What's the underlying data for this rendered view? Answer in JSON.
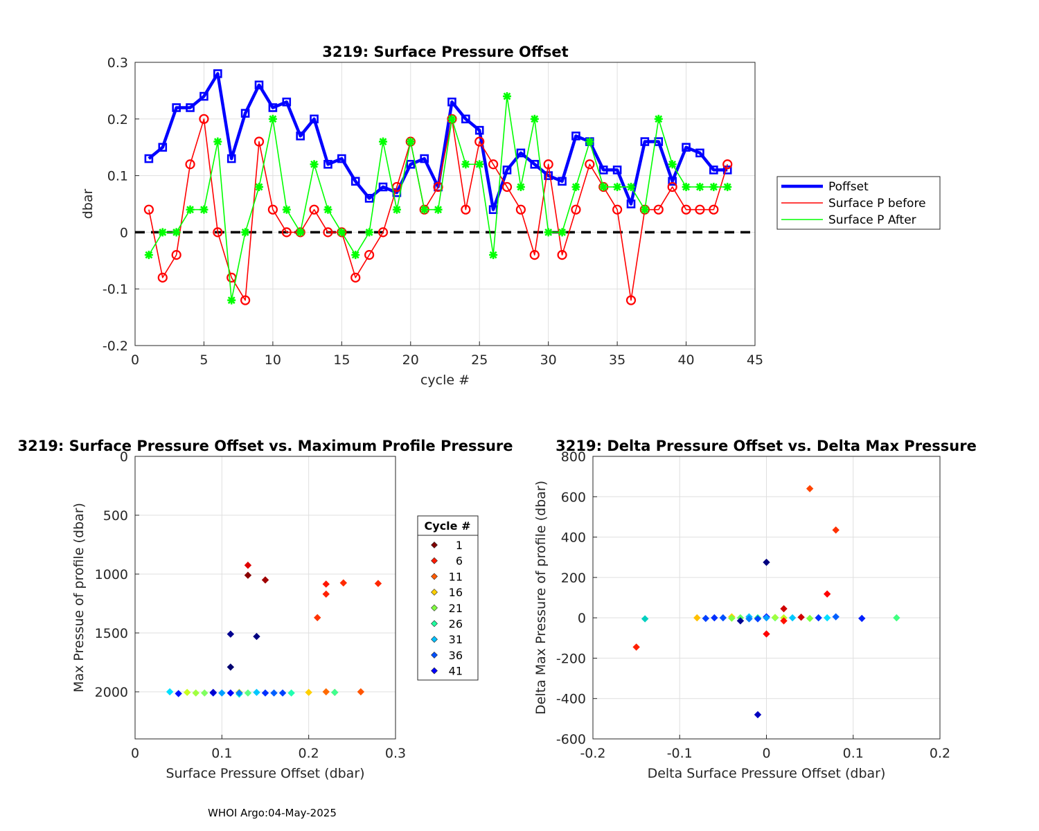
{
  "chart_data": [
    {
      "type": "line",
      "title": "3219: Surface Pressure Offset",
      "xlabel": "cycle #",
      "ylabel": "dbar",
      "xlim": [
        0,
        45
      ],
      "ylim": [
        -0.2,
        0.3
      ],
      "xticks": [
        "0",
        "5",
        "10",
        "15",
        "20",
        "25",
        "30",
        "35",
        "40",
        "45"
      ],
      "yticks": [
        "-0.2",
        "-0.1",
        "0",
        "0.1",
        "0.2",
        "0.3"
      ],
      "grid": true,
      "legend_position": "right",
      "reference_line": {
        "y": 0,
        "style": "dashed",
        "color": "#000000"
      },
      "x": [
        1,
        2,
        3,
        4,
        5,
        6,
        7,
        8,
        9,
        10,
        11,
        12,
        13,
        14,
        15,
        16,
        17,
        18,
        19,
        20,
        21,
        22,
        23,
        24,
        25,
        26,
        27,
        28,
        29,
        30,
        31,
        32,
        33,
        34,
        35,
        36,
        37,
        38,
        39,
        40,
        41,
        42,
        43
      ],
      "series": [
        {
          "name": "Poffset",
          "color": "#0000ff",
          "marker": "square",
          "values": [
            0.13,
            0.15,
            0.22,
            0.22,
            0.24,
            0.28,
            0.13,
            0.21,
            0.26,
            0.22,
            0.23,
            0.17,
            0.2,
            0.12,
            0.13,
            0.09,
            0.06,
            0.08,
            0.07,
            0.12,
            0.13,
            0.08,
            0.23,
            0.2,
            0.18,
            0.04,
            0.11,
            0.14,
            0.12,
            0.1,
            0.09,
            0.17,
            0.16,
            0.11,
            0.11,
            0.05,
            0.16,
            0.16,
            0.09,
            0.15,
            0.14,
            0.11,
            0.11
          ]
        },
        {
          "name": "Surface P before",
          "color": "#ff0000",
          "marker": "circle",
          "values": [
            0.04,
            -0.08,
            -0.04,
            0.12,
            0.2,
            0,
            -0.08,
            -0.12,
            0.16,
            0.04,
            0,
            0,
            0.04,
            0,
            0,
            -0.08,
            -0.04,
            0,
            0.08,
            0.16,
            0.04,
            0.08,
            0.2,
            0.04,
            0.16,
            0.12,
            0.08,
            0.04,
            -0.04,
            0.12,
            -0.04,
            0.04,
            0.12,
            0.08,
            0.04,
            -0.12,
            0.04,
            0.04,
            0.08,
            0.04,
            0.04,
            0.04,
            0.12
          ]
        },
        {
          "name": "Surface P After",
          "color": "#00ff00",
          "marker": "star",
          "values": [
            -0.04,
            0,
            0,
            0.04,
            0.04,
            0.16,
            -0.12,
            0,
            0.08,
            0.2,
            0.04,
            0,
            0.12,
            0.04,
            0,
            -0.04,
            0,
            0.16,
            0.04,
            0.16,
            0.04,
            0.04,
            0.2,
            0.12,
            0.12,
            -0.04,
            0.24,
            0.08,
            0.2,
            0,
            0,
            0.08,
            0.16,
            0.08,
            0.08,
            0.08,
            0.04,
            0.2,
            0.12,
            0.08,
            0.08,
            0.08,
            0.08
          ]
        }
      ]
    },
    {
      "type": "scatter",
      "title": "3219: Surface Pressure Offset vs. Maximum Profile Pressure",
      "xlabel": "Surface Pressure Offset (dbar)",
      "ylabel": "Max Pressue of profile (dbar)",
      "xlim": [
        0,
        0.3
      ],
      "ylim": [
        0,
        2400
      ],
      "y_reversed": true,
      "xticks": [
        "0",
        "0.1",
        "0.2",
        "0.3"
      ],
      "yticks": [
        "0",
        "500",
        "1000",
        "1500",
        "2000"
      ],
      "grid": true,
      "colorscale": "jet",
      "legend_title": "Cycle #",
      "legend_entries": [
        "1",
        "6",
        "11",
        "16",
        "21",
        "26",
        "31",
        "36",
        "41"
      ],
      "legend_colors": [
        "#800000",
        "#ff1a00",
        "#ff5a00",
        "#ffd000",
        "#80ff40",
        "#20ffa0",
        "#00c0ff",
        "#0050ff",
        "#0000ff"
      ],
      "points": [
        {
          "x": 0.13,
          "y": 1010,
          "color": "#8a0000"
        },
        {
          "x": 0.15,
          "y": 1050,
          "color": "#a00000"
        },
        {
          "x": 0.13,
          "y": 925,
          "color": "#e00000"
        },
        {
          "x": 0.22,
          "y": 1085,
          "color": "#ff1500"
        },
        {
          "x": 0.22,
          "y": 1170,
          "color": "#ff2000"
        },
        {
          "x": 0.24,
          "y": 1075,
          "color": "#ff2a00"
        },
        {
          "x": 0.28,
          "y": 1080,
          "color": "#ff2800"
        },
        {
          "x": 0.21,
          "y": 1370,
          "color": "#ff3300"
        },
        {
          "x": 0.26,
          "y": 2000,
          "color": "#ff5500"
        },
        {
          "x": 0.22,
          "y": 2000,
          "color": "#ff6a00"
        },
        {
          "x": 0.23,
          "y": 2005,
          "color": "#ff8800"
        },
        {
          "x": 0.2,
          "y": 2005,
          "color": "#ffd000"
        },
        {
          "x": 0.12,
          "y": 2005,
          "color": "#ffe000"
        },
        {
          "x": 0.06,
          "y": 2005,
          "color": "#c8ff20"
        },
        {
          "x": 0.07,
          "y": 2010,
          "color": "#a0ff40"
        },
        {
          "x": 0.08,
          "y": 2010,
          "color": "#80ff60"
        },
        {
          "x": 0.13,
          "y": 2010,
          "color": "#60ff80"
        },
        {
          "x": 0.23,
          "y": 2005,
          "color": "#40ff90"
        },
        {
          "x": 0.18,
          "y": 2010,
          "color": "#20ffb0"
        },
        {
          "x": 0.12,
          "y": 2020,
          "color": "#10f0d0"
        },
        {
          "x": 0.04,
          "y": 2000,
          "color": "#00e0ff"
        },
        {
          "x": 0.14,
          "y": 2005,
          "color": "#00c8ff"
        },
        {
          "x": 0.1,
          "y": 2010,
          "color": "#00a0ff"
        },
        {
          "x": 0.12,
          "y": 2010,
          "color": "#0080ff"
        },
        {
          "x": 0.16,
          "y": 2010,
          "color": "#0060ff"
        },
        {
          "x": 0.17,
          "y": 2010,
          "color": "#0040ff"
        },
        {
          "x": 0.15,
          "y": 2010,
          "color": "#0030ff"
        },
        {
          "x": 0.09,
          "y": 2010,
          "color": "#0020ff"
        },
        {
          "x": 0.05,
          "y": 2015,
          "color": "#0010ff"
        },
        {
          "x": 0.11,
          "y": 2010,
          "color": "#0000ff"
        },
        {
          "x": 0.09,
          "y": 2005,
          "color": "#0000d0"
        },
        {
          "x": 0.11,
          "y": 1510,
          "color": "#000090"
        },
        {
          "x": 0.14,
          "y": 1530,
          "color": "#000080"
        },
        {
          "x": 0.11,
          "y": 1790,
          "color": "#000070"
        }
      ]
    },
    {
      "type": "scatter",
      "title": "3219: Delta Pressure Offset vs. Delta Max Pressure",
      "xlabel": "Delta Surface Pressure Offset (dbar)",
      "ylabel": "Delta Max Pressure of profile (dbar)",
      "xlim": [
        -0.2,
        0.2
      ],
      "ylim": [
        -600,
        800
      ],
      "xticks": [
        "-0.2",
        "-0.1",
        "0",
        "0.1",
        "0.2"
      ],
      "yticks": [
        "-600",
        "-400",
        "-200",
        "0",
        "200",
        "400",
        "600",
        "800"
      ],
      "grid": true,
      "colorscale": "jet",
      "points": [
        {
          "x": 0.05,
          "y": 640,
          "color": "#ff4500"
        },
        {
          "x": 0.08,
          "y": 435,
          "color": "#ff3000"
        },
        {
          "x": 0,
          "y": 275,
          "color": "#000080"
        },
        {
          "x": 0.07,
          "y": 118,
          "color": "#ff0000"
        },
        {
          "x": 0.02,
          "y": 45,
          "color": "#d00000"
        },
        {
          "x": -0.15,
          "y": -145,
          "color": "#ff2000"
        },
        {
          "x": -0.14,
          "y": -5,
          "color": "#00d0c0"
        },
        {
          "x": 0,
          "y": -80,
          "color": "#ff0000"
        },
        {
          "x": -0.01,
          "y": -480,
          "color": "#0000c0"
        },
        {
          "x": -0.08,
          "y": 0,
          "color": "#ffc000"
        },
        {
          "x": -0.07,
          "y": -3,
          "color": "#0040ff"
        },
        {
          "x": -0.06,
          "y": 0,
          "color": "#0030ff"
        },
        {
          "x": -0.05,
          "y": 0,
          "color": "#0050ff"
        },
        {
          "x": -0.04,
          "y": 5,
          "color": "#ffd000"
        },
        {
          "x": -0.04,
          "y": -2,
          "color": "#80ff40"
        },
        {
          "x": -0.03,
          "y": 0,
          "color": "#60ff60"
        },
        {
          "x": -0.03,
          "y": -15,
          "color": "#000090"
        },
        {
          "x": -0.02,
          "y": 5,
          "color": "#00c0ff"
        },
        {
          "x": -0.02,
          "y": -5,
          "color": "#0080ff"
        },
        {
          "x": -0.01,
          "y": 0,
          "color": "#20ff80"
        },
        {
          "x": -0.01,
          "y": -5,
          "color": "#0040ff"
        },
        {
          "x": 0,
          "y": 5,
          "color": "#0000ff"
        },
        {
          "x": 0,
          "y": 0,
          "color": "#00a0ff"
        },
        {
          "x": 0.01,
          "y": 0,
          "color": "#40ff80"
        },
        {
          "x": 0.01,
          "y": 2,
          "color": "#a0ff40"
        },
        {
          "x": 0.02,
          "y": 0,
          "color": "#c0ff20"
        },
        {
          "x": 0.02,
          "y": -15,
          "color": "#ff1000"
        },
        {
          "x": 0.03,
          "y": 0,
          "color": "#00c8ff"
        },
        {
          "x": 0.04,
          "y": 3,
          "color": "#d00000"
        },
        {
          "x": 0.05,
          "y": -3,
          "color": "#80ff40"
        },
        {
          "x": 0.06,
          "y": 0,
          "color": "#0030ff"
        },
        {
          "x": 0.07,
          "y": 0,
          "color": "#00e0ff"
        },
        {
          "x": 0.08,
          "y": 5,
          "color": "#0060ff"
        },
        {
          "x": 0.11,
          "y": -3,
          "color": "#0020ff"
        },
        {
          "x": 0.15,
          "y": 0,
          "color": "#40ff80"
        }
      ]
    }
  ],
  "footer": "WHOI Argo:04-May-2025"
}
